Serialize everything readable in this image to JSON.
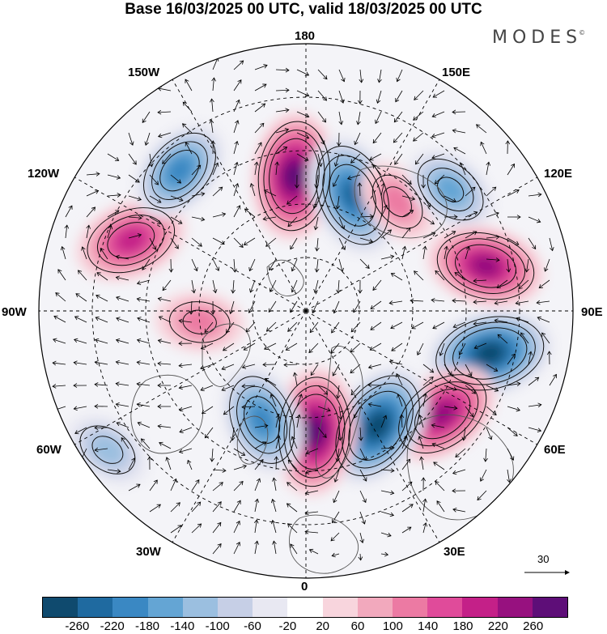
{
  "title": "Base 16/03/2025 00 UTC, valid 18/03/2025 00 UTC",
  "brand": "MODES",
  "brand_mark": "©",
  "longitude_labels": {
    "n180": "180",
    "w150": "150W",
    "e150": "150E",
    "w120": "120W",
    "e120": "120E",
    "w90": "90W",
    "e90": "90E",
    "w60": "60W",
    "e60": "60E",
    "w30": "30W",
    "e30": "30E",
    "s0": "0"
  },
  "reference_vector": "30",
  "colorbar": {
    "colors": [
      "#0f4a6e",
      "#1f6aa0",
      "#3a88c3",
      "#64a5d4",
      "#9bbfe0",
      "#c6cfe6",
      "#e8e8f2",
      "#ffffff",
      "#f8d5dd",
      "#f2a9bd",
      "#ec7aa3",
      "#e04b9a",
      "#c42088",
      "#97117f",
      "#5e0e78"
    ],
    "tick_labels": [
      "-260",
      "-220",
      "-180",
      "-140",
      "-100",
      "-60",
      "-20",
      "20",
      "60",
      "100",
      "140",
      "180",
      "220",
      "260"
    ]
  },
  "anomaly_centers": [
    {
      "sign": "positive",
      "lon": 175,
      "lat": 52,
      "strength": 260
    },
    {
      "sign": "negative",
      "lon": -158,
      "lat": 55,
      "strength": 240
    },
    {
      "sign": "positive",
      "lon": -140,
      "lat": 50,
      "strength": 100
    },
    {
      "sign": "negative",
      "lon": -130,
      "lat": 37,
      "strength": 140
    },
    {
      "sign": "positive",
      "lon": -104,
      "lat": 38,
      "strength": 220
    },
    {
      "sign": "negative",
      "lon": -77,
      "lat": 37,
      "strength": 260
    },
    {
      "sign": "positive",
      "lon": -53,
      "lat": 42,
      "strength": 220
    },
    {
      "sign": "negative",
      "lon": -32,
      "lat": 52,
      "strength": 260
    },
    {
      "sign": "positive",
      "lon": -4,
      "lat": 56,
      "strength": 260
    },
    {
      "sign": "negative",
      "lon": 22,
      "lat": 57,
      "strength": 200
    },
    {
      "sign": "positive",
      "lon": 112,
      "lat": 37,
      "strength": 200
    },
    {
      "sign": "negative",
      "lon": 138,
      "lat": 37,
      "strength": 180
    },
    {
      "sign": "positive",
      "lon": 84,
      "lat": 60,
      "strength": 100
    },
    {
      "sign": "negative",
      "lon": 55,
      "lat": 22,
      "strength": 100
    }
  ]
}
